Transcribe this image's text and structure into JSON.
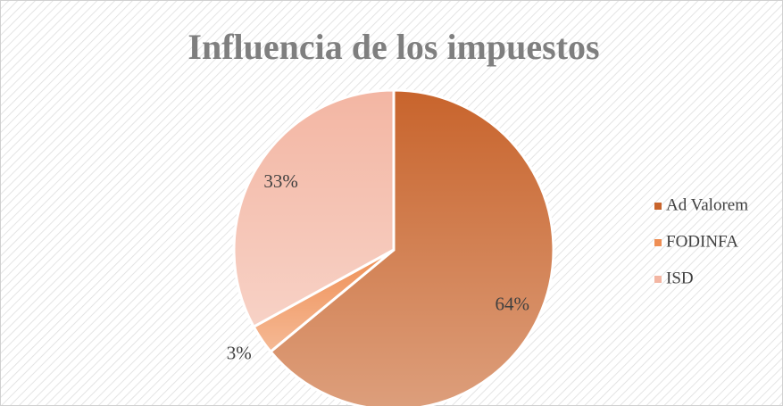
{
  "chart_data": {
    "type": "pie",
    "title": "Influencia de los impuestos",
    "categories": [
      "Ad Valorem",
      "FODINFA",
      "ISD"
    ],
    "values": [
      64,
      3,
      33
    ],
    "value_labels": [
      "64%",
      "3%",
      "33%"
    ],
    "colors": [
      "#c8642c",
      "#ef8f55",
      "#f3b6a3"
    ],
    "legend": "right"
  }
}
